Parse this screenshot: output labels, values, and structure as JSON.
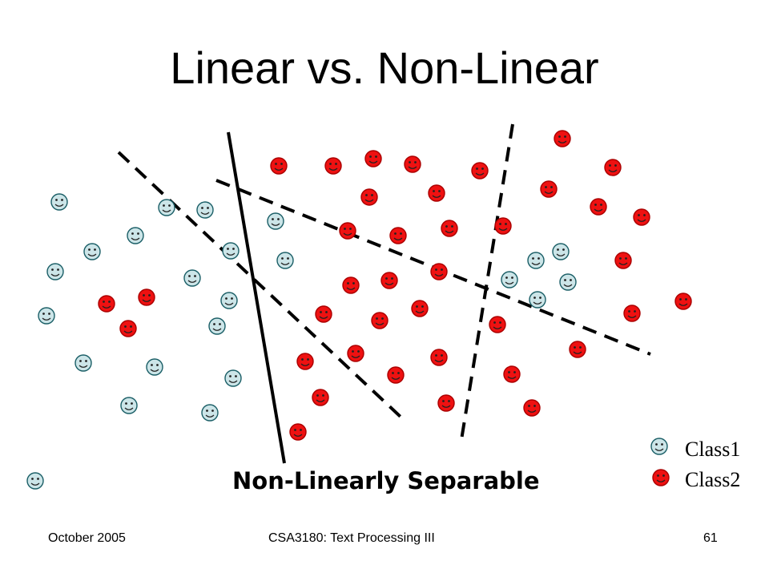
{
  "slide": {
    "title": "Linear vs. Non-Linear",
    "caption": "Non-Linearly Separable"
  },
  "legend": {
    "class1": "Class1",
    "class2": "Class2"
  },
  "colors": {
    "class1_fill": "#cce5e8",
    "class1_stroke": "#1a5e66",
    "class2_fill": "#ee1111",
    "class2_stroke": "#aa0000",
    "line": "#000000"
  },
  "footer": {
    "date": "October 2005",
    "course": "CSA3180: Text Processing III",
    "page": "61"
  }
}
